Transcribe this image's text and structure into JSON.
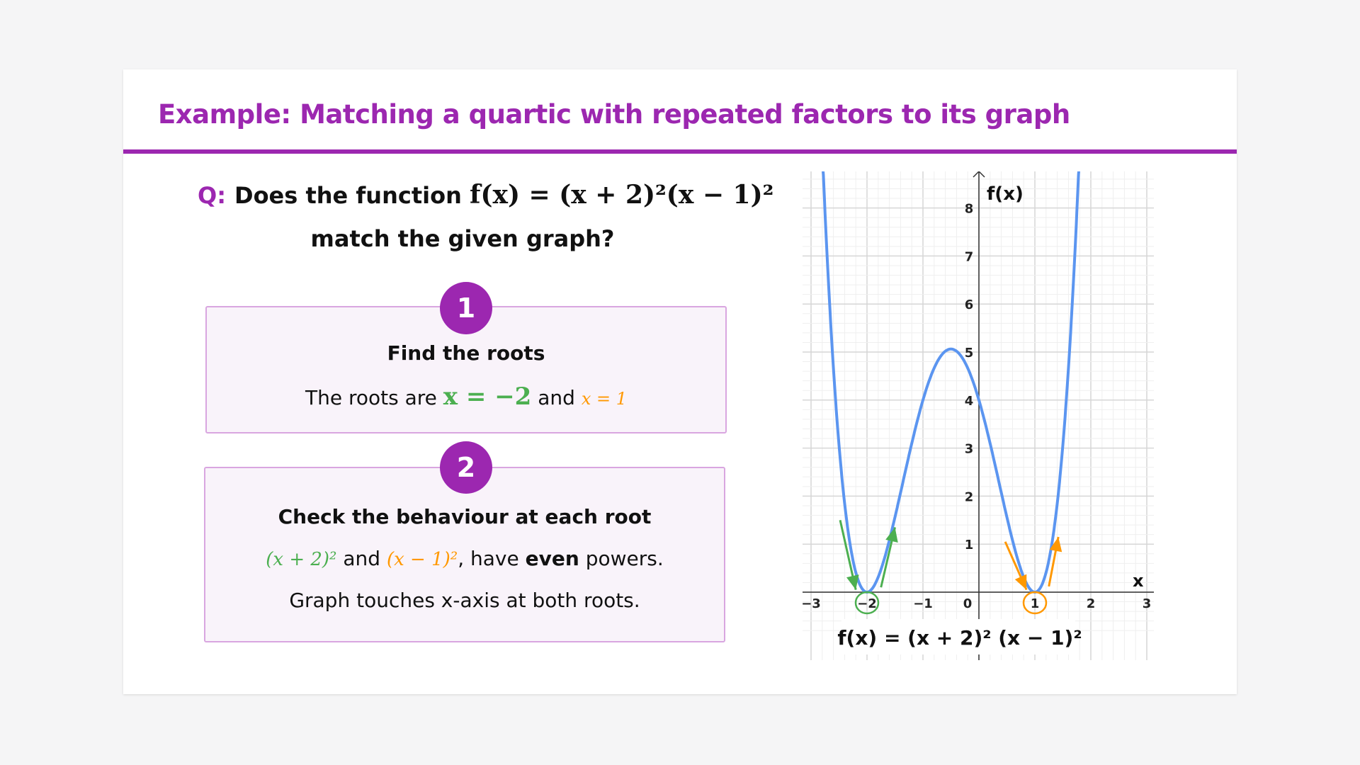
{
  "title": "Example: Matching a quartic with repeated factors to its graph",
  "question": {
    "label": "Q:",
    "text": "Does the function",
    "formula": "f(x) = (x + 2)²(x − 1)²",
    "line2": "match the given graph?"
  },
  "steps": [
    {
      "number": "1",
      "heading": "Find the roots",
      "text_before": "The roots are",
      "root1": "x = −2",
      "text_mid": "and",
      "root2": "x = 1"
    },
    {
      "number": "2",
      "heading": "Check the behaviour at each root",
      "factor1": "(x + 2)²",
      "mid": "and",
      "factor2": "(x − 1)²",
      "after": ", have",
      "emph": "even",
      "end": "powers.",
      "line2": "Graph touches x-axis at both roots."
    }
  ],
  "colors": {
    "accent": "#9c27b0",
    "root1": "#4caf50",
    "root2": "#ff9800",
    "curve": "#5b95f0"
  },
  "chart_data": {
    "type": "line",
    "function": "f(x) = (x+2)^2 (x-1)^2",
    "xlabel": "x",
    "ylabel": "f(x)",
    "xlim": [
      -3,
      3
    ],
    "ylim": [
      0,
      8
    ],
    "x_ticks": [
      "−3",
      "−2",
      "−1",
      "0",
      "1",
      "2",
      "3"
    ],
    "y_ticks": [
      "1",
      "2",
      "3",
      "4",
      "5",
      "6",
      "7",
      "8"
    ],
    "highlighted_roots": [
      -2,
      1
    ],
    "local_max": {
      "x": -0.5,
      "y": 5.0625
    },
    "y_intercept": 4,
    "grid": true,
    "annotation": "f(x) = (x + 2)² (x − 1)²"
  }
}
